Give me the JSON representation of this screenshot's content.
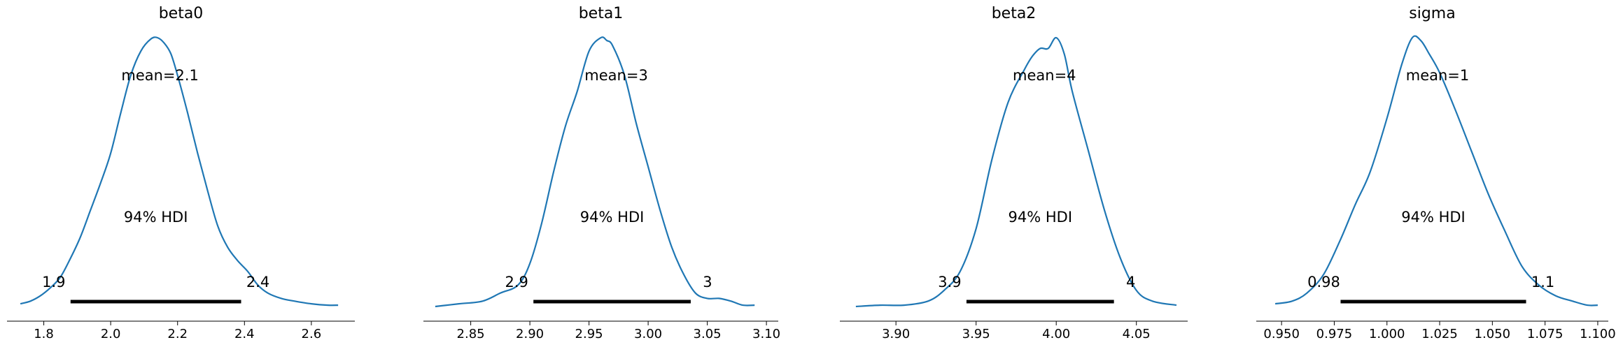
{
  "chart_data": [
    {
      "type": "line",
      "title": "beta0",
      "mean_label": "mean=2.1",
      "hdi_label": "94% HDI",
      "hdi_low_label": "1.9",
      "hdi_high_label": "2.4",
      "hdi": [
        1.88,
        2.39
      ],
      "xlim": [
        1.69,
        2.73
      ],
      "xticks": [
        1.8,
        2.0,
        2.2,
        2.4,
        2.6
      ],
      "xtick_labels": [
        "1.8",
        "2.0",
        "2.2",
        "2.4",
        "2.6"
      ],
      "density": {
        "x": [
          1.73,
          1.76,
          1.79,
          1.82,
          1.85,
          1.88,
          1.91,
          1.94,
          1.97,
          2.0,
          2.03,
          2.06,
          2.09,
          2.12,
          2.14,
          2.16,
          2.18,
          2.2,
          2.23,
          2.26,
          2.29,
          2.32,
          2.35,
          2.38,
          2.41,
          2.44,
          2.47,
          2.51,
          2.55,
          2.6,
          2.65,
          2.68
        ],
        "y": [
          0.01,
          0.02,
          0.04,
          0.07,
          0.11,
          0.18,
          0.26,
          0.36,
          0.46,
          0.57,
          0.72,
          0.86,
          0.95,
          0.995,
          1.0,
          0.98,
          0.94,
          0.86,
          0.72,
          0.57,
          0.43,
          0.3,
          0.22,
          0.17,
          0.13,
          0.08,
          0.05,
          0.03,
          0.02,
          0.01,
          0.005,
          0.005
        ]
      }
    },
    {
      "type": "line",
      "title": "beta1",
      "mean_label": "mean=3",
      "hdi_label": "94% HDI",
      "hdi_low_label": "2.9",
      "hdi_high_label": "3",
      "hdi": [
        2.903,
        3.036
      ],
      "xlim": [
        2.81,
        3.11
      ],
      "xticks": [
        2.85,
        2.9,
        2.95,
        3.0,
        3.05,
        3.1
      ],
      "xtick_labels": [
        "2.85",
        "2.90",
        "2.95",
        "3.00",
        "3.05",
        "3.10"
      ],
      "density": {
        "x": [
          2.82,
          2.84,
          2.86,
          2.875,
          2.89,
          2.9,
          2.91,
          2.92,
          2.93,
          2.94,
          2.95,
          2.96,
          2.965,
          2.97,
          2.98,
          2.99,
          3.0,
          3.01,
          3.02,
          3.03,
          3.04,
          3.05,
          3.06,
          3.07,
          3.08,
          3.09
        ],
        "y": [
          0.0,
          0.01,
          0.02,
          0.05,
          0.08,
          0.16,
          0.31,
          0.5,
          0.67,
          0.8,
          0.95,
          1.0,
          0.99,
          0.97,
          0.86,
          0.68,
          0.52,
          0.36,
          0.22,
          0.12,
          0.05,
          0.03,
          0.03,
          0.02,
          0.005,
          0.005
        ]
      }
    },
    {
      "type": "line",
      "title": "beta2",
      "mean_label": "mean=4",
      "hdi_label": "94% HDI",
      "hdi_low_label": "3.9",
      "hdi_high_label": "4",
      "hdi": [
        3.944,
        4.036
      ],
      "xlim": [
        3.865,
        4.082
      ],
      "xticks": [
        3.9,
        3.95,
        4.0,
        4.05
      ],
      "xtick_labels": [
        "3.90",
        "3.95",
        "4.00",
        "4.05"
      ],
      "density": {
        "x": [
          3.875,
          3.89,
          3.905,
          3.92,
          3.93,
          3.94,
          3.95,
          3.96,
          3.97,
          3.98,
          3.985,
          3.99,
          3.995,
          4.0,
          4.005,
          4.01,
          4.02,
          4.03,
          4.04,
          4.05,
          4.06,
          4.075
        ],
        "y": [
          0.0,
          0.005,
          0.005,
          0.02,
          0.06,
          0.13,
          0.29,
          0.55,
          0.76,
          0.88,
          0.93,
          0.96,
          0.96,
          1.0,
          0.94,
          0.8,
          0.58,
          0.36,
          0.18,
          0.06,
          0.02,
          0.005
        ]
      }
    },
    {
      "type": "line",
      "title": "sigma",
      "mean_label": "mean=1",
      "hdi_label": "94% HDI",
      "hdi_low_label": "0.98",
      "hdi_high_label": "1.1",
      "hdi": [
        0.978,
        1.066
      ],
      "xlim": [
        0.938,
        1.105
      ],
      "xticks": [
        0.95,
        0.975,
        1.0,
        1.025,
        1.05,
        1.075,
        1.1
      ],
      "xtick_labels": [
        "0.950",
        "0.975",
        "1.000",
        "1.025",
        "1.050",
        "1.075",
        "1.100"
      ],
      "density": {
        "x": [
          0.947,
          0.955,
          0.962,
          0.97,
          0.978,
          0.985,
          0.992,
          1.0,
          1.007,
          1.012,
          1.016,
          1.02,
          1.025,
          1.032,
          1.04,
          1.048,
          1.056,
          1.064,
          1.072,
          1.08,
          1.088,
          1.095,
          1.1
        ],
        "y": [
          0.01,
          0.02,
          0.05,
          0.12,
          0.25,
          0.38,
          0.5,
          0.7,
          0.9,
          1.0,
          0.99,
          0.94,
          0.87,
          0.74,
          0.58,
          0.42,
          0.28,
          0.15,
          0.08,
          0.04,
          0.02,
          0.005,
          0.005
        ]
      }
    }
  ]
}
